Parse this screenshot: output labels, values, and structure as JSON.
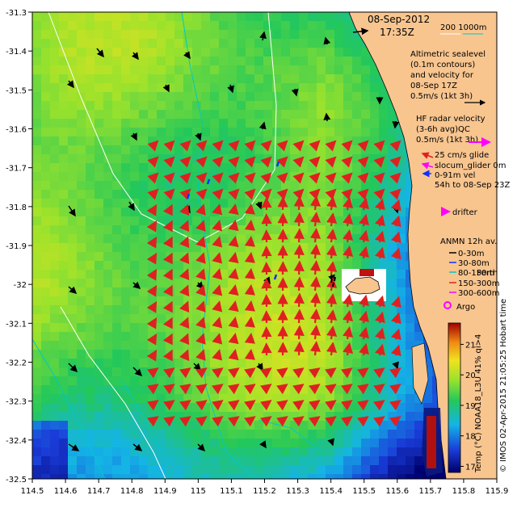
{
  "map": {
    "x_ticks": [
      "114.5",
      "114.6",
      "114.7",
      "114.8",
      "114.9",
      "115",
      "115.1",
      "115.2",
      "115.3",
      "115.4",
      "115.5",
      "115.6",
      "115.7",
      "115.8",
      "115.9"
    ],
    "y_ticks": [
      "-31.3",
      "-31.4",
      "-31.5",
      "-31.6",
      "-31.7",
      "-31.8",
      "-31.9",
      "-32",
      "-32.1",
      "-32.2",
      "-32.3",
      "-32.4",
      "-32.5"
    ],
    "xlim": [
      114.5,
      115.9
    ],
    "ylim": [
      -32.5,
      -31.3
    ],
    "land_color": "#f8c58f",
    "ocean_warm_color": "#9be22c",
    "ocean_cool_color": "#1a6bd8"
  },
  "legend": {
    "date": "08-Sep-2012",
    "time": "17:35Z",
    "isobath_label": "200  1000m",
    "altimetry_lines": [
      "Altimetric sealevel",
      "(0.1m contours)",
      "and velocity for",
      "08-Sep 17Z",
      "0.5m/s (1kt 3h)"
    ],
    "hf_radar_lines": [
      "HF radar velocity",
      "(3-6h avg)QC",
      "0.5m/s (1kt 3h)"
    ],
    "glider_lines": [
      "25 cm/s glide",
      "slocum_glider 0m",
      "0-91m vel",
      "54h to 08-Sep 23Z"
    ],
    "drifter_label": "drifter",
    "anmn_title": "ANMN 12h av.",
    "anmn_items": [
      "0-30m",
      "30-80m",
      "80-150m",
      "150-300m",
      "300-600m"
    ],
    "perth_label": "Perth",
    "argo_label": "Argo",
    "colors": {
      "hf": "#e02020",
      "glider": "#ff00ff",
      "blue": "#1030ff",
      "cyan": "#00c8c8",
      "black": "#000000"
    }
  },
  "colorbar": {
    "title": "Temp (°C) NOAA18_L3U 41% qi>4",
    "ticks": [
      "21",
      "20",
      "19",
      "18",
      "17"
    ],
    "range": [
      16.8,
      21.7
    ]
  },
  "credit": "© IMOS 02-Apr-2015 21:05:25 Hobart time"
}
